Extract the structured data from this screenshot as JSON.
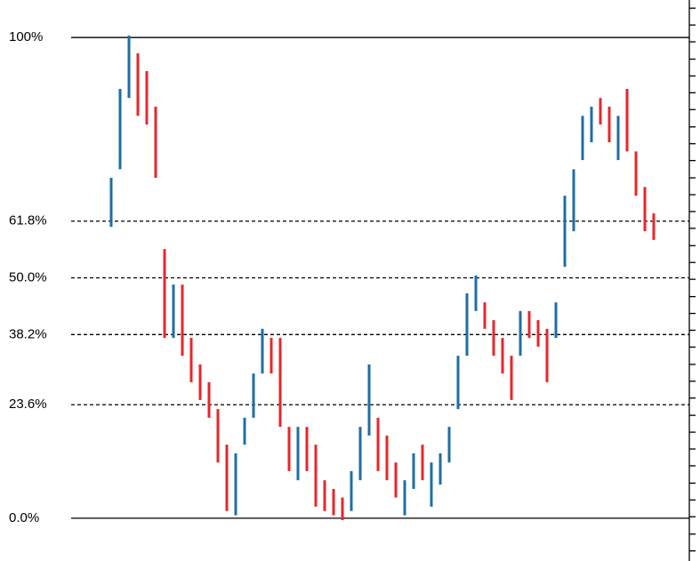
{
  "chart_data": {
    "type": "range-bar",
    "x": [
      0,
      1,
      2,
      3,
      4,
      5,
      6,
      7,
      8,
      9,
      10,
      11,
      12,
      13,
      14,
      15,
      16,
      17,
      18,
      19,
      20,
      21,
      22,
      23,
      24,
      25,
      26,
      27,
      28,
      29,
      30,
      31,
      32,
      33,
      34,
      35,
      36,
      37,
      38,
      39,
      40,
      41,
      42,
      43,
      44,
      45,
      46,
      47,
      48,
      49,
      50,
      51,
      52,
      53,
      54,
      55,
      56,
      57,
      58,
      59,
      60,
      61
    ],
    "high": [
      70.8,
      89.3,
      100.4,
      96.7,
      93,
      85.6,
      56,
      48.6,
      48.6,
      37.5,
      32,
      28.3,
      22.7,
      15.3,
      13.5,
      20.9,
      30.1,
      39.4,
      37.5,
      37.5,
      19,
      19,
      19,
      15.3,
      7.9,
      6.1,
      4.3,
      9.8,
      19,
      32,
      20.9,
      17.2,
      11.6,
      7.9,
      13.5,
      15.3,
      11.6,
      13.5,
      19,
      33.8,
      46.8,
      50.5,
      44.9,
      41.2,
      37.5,
      33.8,
      43.1,
      43.1,
      41.2,
      39.4,
      44.9,
      67.1,
      72.6,
      83.7,
      85.6,
      87.4,
      85.6,
      83.7,
      89.3,
      76.3,
      68.9,
      63.4
    ],
    "low": [
      60.6,
      72.6,
      87.4,
      83.7,
      81.9,
      70.8,
      37.5,
      37.5,
      33.8,
      28.3,
      24.6,
      20.9,
      11.6,
      1.5,
      0.6,
      15.3,
      20.9,
      30.1,
      30.1,
      19,
      9.8,
      7.9,
      9.8,
      2.4,
      1.5,
      0.6,
      -0.4,
      1.5,
      7.9,
      17.2,
      9.8,
      7.9,
      4.3,
      0.6,
      6.1,
      7.9,
      2.4,
      7,
      11.6,
      22.7,
      33.8,
      43.1,
      39.4,
      33.8,
      30.1,
      24.6,
      33.8,
      37.5,
      35.7,
      28.3,
      37.5,
      52.3,
      59.7,
      74.5,
      78.2,
      81.9,
      78.2,
      74.5,
      76.3,
      67.1,
      59.7,
      57.9
    ],
    "up": [
      true,
      true,
      true,
      false,
      false,
      false,
      false,
      true,
      false,
      false,
      false,
      false,
      false,
      false,
      true,
      true,
      true,
      true,
      false,
      false,
      false,
      true,
      false,
      false,
      false,
      false,
      false,
      true,
      true,
      true,
      false,
      false,
      false,
      true,
      true,
      false,
      true,
      true,
      true,
      true,
      true,
      true,
      false,
      false,
      false,
      false,
      true,
      false,
      false,
      false,
      true,
      true,
      true,
      true,
      true,
      false,
      false,
      true,
      false,
      false,
      false,
      false
    ],
    "up_color": "#1f6ea6",
    "down_color": "#e8262b",
    "xlim": [
      -12.5,
      65
    ],
    "ylim": [
      -8.9,
      107.8
    ],
    "yticks": [
      {
        "value": 100,
        "label": "100%"
      },
      {
        "value": 61.8,
        "label": "61.8%"
      },
      {
        "value": 50,
        "label": "50.0%"
      },
      {
        "value": 38.2,
        "label": "38.2%"
      },
      {
        "value": 23.6,
        "label": "23.6%"
      },
      {
        "value": 0,
        "label": "0.0%"
      }
    ],
    "level_styles": [
      "solid",
      "dashed",
      "dashed",
      "dashed",
      "dashed",
      "solid"
    ],
    "right_ticks": [
      -6.8,
      -3.3,
      0.3,
      3.8,
      7.3,
      10.9,
      14.4,
      17.9,
      21.4,
      25.0,
      28.5,
      32.0,
      35.6,
      39.1,
      42.6,
      46.1,
      49.7,
      53.2,
      56.7,
      60.3,
      63.8,
      67.3,
      70.8,
      74.4,
      77.9,
      81.4,
      85.0,
      88.5,
      92.0,
      95.5,
      99.1,
      102.6,
      106.1
    ]
  }
}
